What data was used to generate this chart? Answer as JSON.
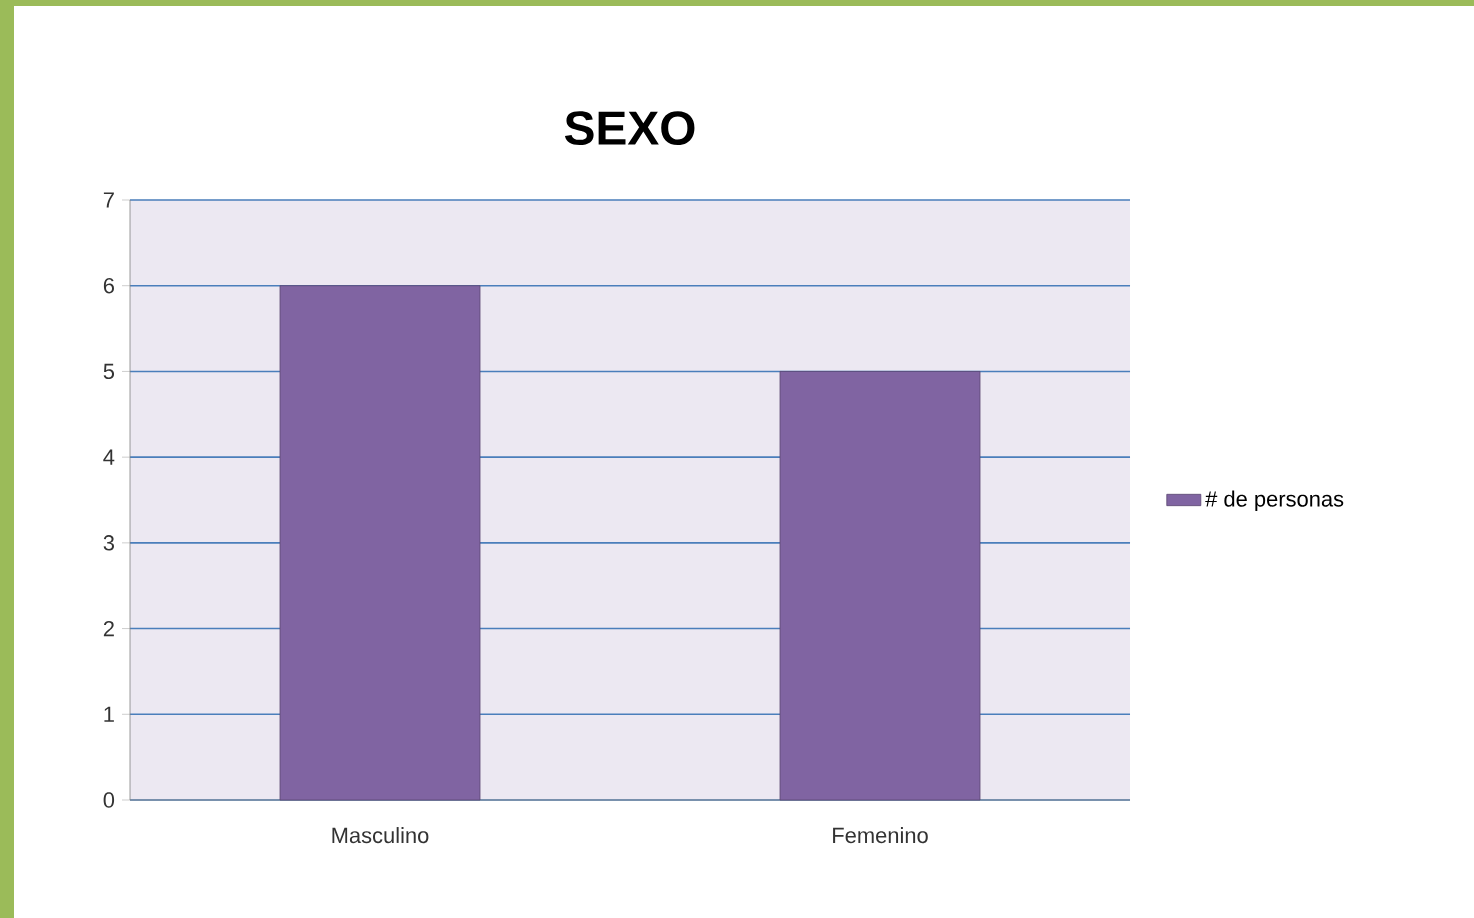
{
  "chart_data": {
    "type": "bar",
    "title": "SEXO",
    "categories": [
      "Masculino",
      "Femenino"
    ],
    "series": [
      {
        "name": "# de personas",
        "color": "#8064a2",
        "values": [
          6,
          5
        ]
      }
    ],
    "ylim": [
      0,
      7
    ],
    "yticks": [
      0,
      1,
      2,
      3,
      4,
      5,
      6,
      7
    ],
    "grid": "y",
    "legend": "right"
  }
}
